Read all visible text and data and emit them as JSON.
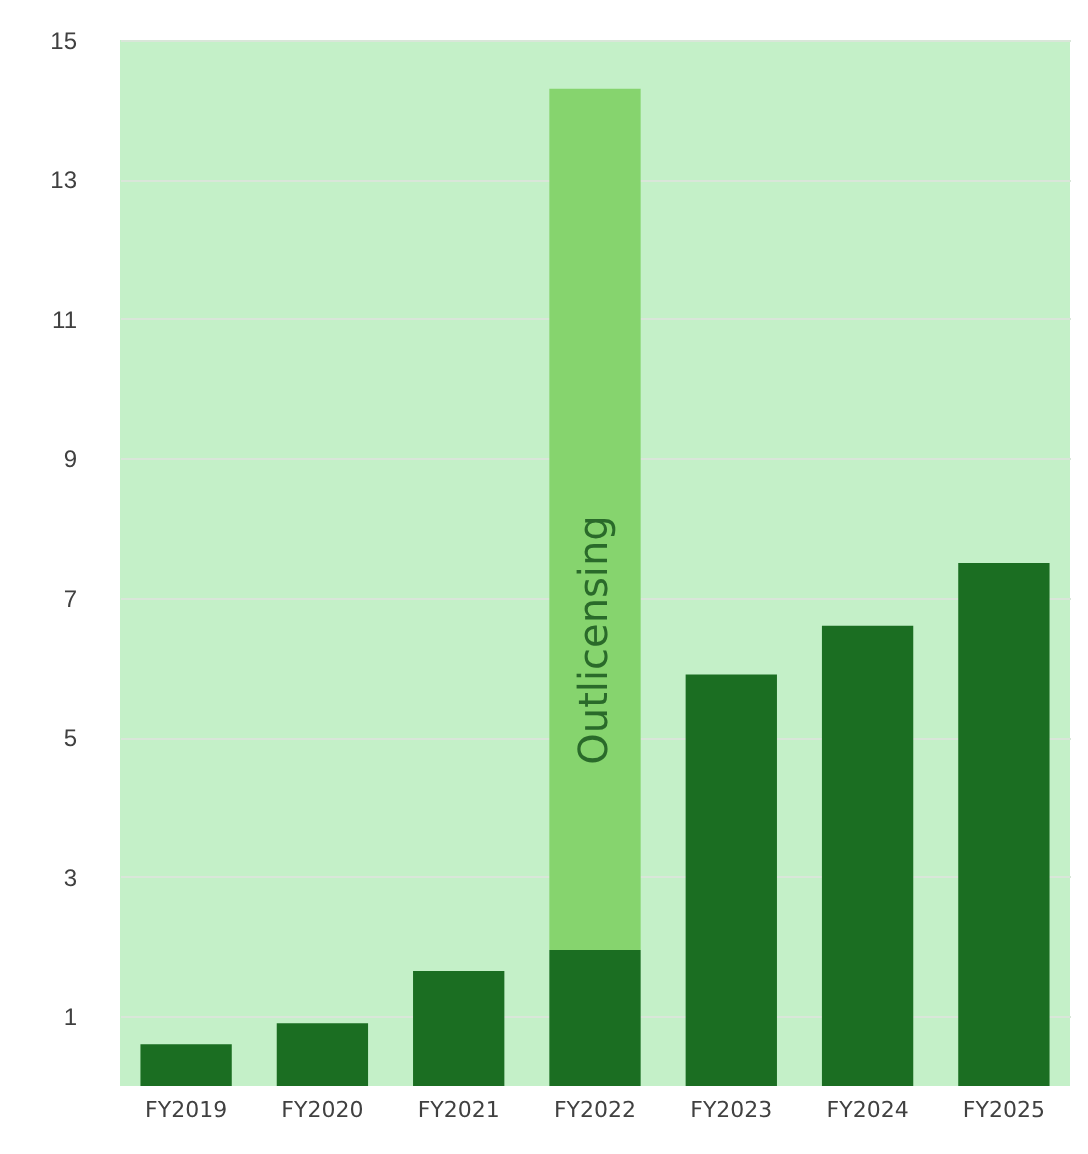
{
  "chart_data": {
    "type": "bar",
    "stacked": true,
    "categories": [
      "FY2019",
      "FY2020",
      "FY2021",
      "FY2022",
      "FY2023",
      "FY2024",
      "FY2025"
    ],
    "series": [
      {
        "color": "#1b6e22",
        "values": [
          0.6,
          0.9,
          1.65,
          1.95,
          5.9,
          6.6,
          7.5
        ]
      },
      {
        "color": "#86d46e",
        "values": [
          null,
          null,
          null,
          12.35,
          null,
          null,
          null
        ]
      }
    ],
    "ylim": [
      0,
      15
    ],
    "yticks": [
      1,
      3,
      5,
      7,
      9,
      11,
      13,
      15
    ],
    "grid": "y",
    "annotations": [
      "Outlicensing"
    ]
  }
}
